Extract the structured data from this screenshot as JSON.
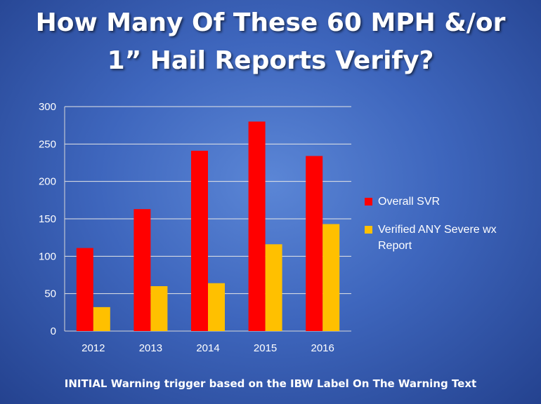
{
  "slide": {
    "title_line1": "How Many Of These 60 MPH &/or",
    "title_line2": "1” Hail Reports Verify?",
    "footer": "INITIAL Warning trigger based on the IBW Label On The Warning Text"
  },
  "chart_data": {
    "type": "bar",
    "categories": [
      "2012",
      "2013",
      "2014",
      "2015",
      "2016"
    ],
    "series": [
      {
        "name": "Overall SVR",
        "color": "#ff0000",
        "values": [
          111,
          163,
          241,
          280,
          234
        ]
      },
      {
        "name": "Verified ANY Severe wx Report",
        "color": "#ffc000",
        "values": [
          32,
          60,
          64,
          116,
          143
        ]
      }
    ],
    "ylim": [
      0,
      300
    ],
    "yticks": [
      "0",
      "50",
      "100",
      "150",
      "200",
      "250",
      "300"
    ],
    "grid": true,
    "legend_position": "right",
    "title": "",
    "xlabel": "",
    "ylabel": ""
  }
}
